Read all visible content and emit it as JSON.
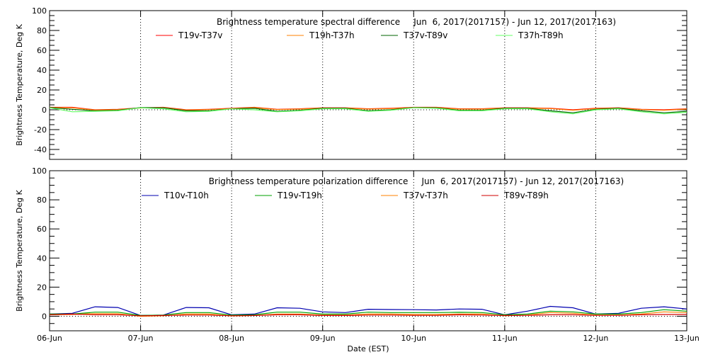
{
  "chart_data": [
    {
      "type": "line",
      "title": "Brightness temperature spectral difference     Jun  6, 2017(2017157) - Jun 12, 2017(2017163)",
      "xlabel": "",
      "ylabel": "Brightness Temperature, Deg K",
      "ylim": [
        -50,
        100
      ],
      "yticks": [
        -40,
        -20,
        0,
        20,
        40,
        60,
        80,
        100
      ],
      "xlim": [
        0,
        7
      ],
      "x_step_days": 0.25,
      "series": [
        {
          "name": "T19v-T37v",
          "color": "#ff0000",
          "values": [
            2.5,
            2.5,
            0,
            0.5,
            2,
            2.5,
            0,
            0.5,
            1.5,
            2.5,
            0.5,
            1,
            2,
            2,
            1,
            1.5,
            2.5,
            2.5,
            1,
            1,
            2,
            2,
            1.5,
            0,
            1.5,
            2,
            0.5,
            0,
            1
          ]
        },
        {
          "name": "T19h-T37h",
          "color": "#ff8000",
          "values": [
            2.2,
            2,
            -0.3,
            0.2,
            1.8,
            2.2,
            -0.3,
            0.2,
            1.2,
            2.2,
            0.2,
            0.7,
            1.7,
            1.7,
            0.7,
            1.2,
            2.2,
            2.2,
            0.7,
            0.7,
            1.7,
            1.7,
            1.2,
            -0.5,
            1.2,
            1.7,
            0.2,
            -0.5,
            0.7
          ]
        },
        {
          "name": "T37v-T89v",
          "color": "#006400",
          "values": [
            2.3,
            0.5,
            -1,
            -0.5,
            2.3,
            2,
            -1,
            -1,
            1,
            1.5,
            -1.5,
            -0.5,
            1.5,
            1.5,
            -1,
            0,
            2.3,
            2,
            -0.5,
            -0.5,
            1.5,
            1.5,
            -1,
            -3,
            0.5,
            1.5,
            -1,
            -3,
            -1.5
          ]
        },
        {
          "name": "T37h-T89h",
          "color": "#66ff66",
          "values": [
            2,
            -2,
            -1.5,
            -1,
            2,
            1,
            -2,
            -1.5,
            1,
            0,
            -2,
            -1,
            1,
            1,
            -1.5,
            -0.5,
            2,
            1.5,
            -1,
            -1,
            1,
            1,
            -2,
            -4,
            0,
            1,
            -2,
            -4,
            -2.5
          ]
        }
      ]
    },
    {
      "type": "line",
      "title": "Brightness temperature polarization difference     Jun  6, 2017(2017157) - Jun 12, 2017(2017163)",
      "xlabel": "Date (EST)",
      "ylabel": "Brightness Temperature, Deg K",
      "ylim": [
        -10,
        100
      ],
      "yticks": [
        0,
        20,
        40,
        60,
        80,
        100
      ],
      "xlim": [
        0,
        7
      ],
      "xticks": [
        "06-Jun",
        "07-Jun",
        "08-Jun",
        "09-Jun",
        "10-Jun",
        "11-Jun",
        "12-Jun",
        "13-Jun"
      ],
      "x_step_days": 0.25,
      "series": [
        {
          "name": "T10v-T10h",
          "color": "#0000b0",
          "values": [
            1.5,
            2,
            6.5,
            6,
            0.5,
            0.8,
            6,
            5.8,
            1,
            1.5,
            5.8,
            5.5,
            3,
            2.5,
            4.8,
            4.6,
            4.5,
            4.3,
            5,
            4.8,
            1,
            3.5,
            6.8,
            5.8,
            1.5,
            2,
            5.5,
            6.5,
            5
          ]
        },
        {
          "name": "T19v-T19h",
          "color": "#00a000",
          "values": [
            1.5,
            1.5,
            2.8,
            2.8,
            0.5,
            0.8,
            2.5,
            2.5,
            0.8,
            1,
            2.8,
            2.8,
            1.5,
            1.5,
            2.8,
            2.5,
            2.5,
            2.5,
            2.7,
            2.5,
            1,
            1.5,
            3.5,
            3,
            1.5,
            1.5,
            2.5,
            4.5,
            3.5
          ]
        },
        {
          "name": "T37v-T37h",
          "color": "#ff8000",
          "values": [
            1,
            1.2,
            1.8,
            1.8,
            0,
            0.3,
            1.5,
            1.5,
            0.2,
            0.5,
            1.5,
            1.5,
            0.8,
            0.8,
            1.5,
            1.5,
            1.2,
            1.2,
            1.5,
            1.5,
            0.3,
            0.8,
            2.5,
            2,
            0.8,
            0.8,
            1.5,
            3,
            2.5
          ]
        },
        {
          "name": "T89v-T89h",
          "color": "#d00000",
          "values": [
            1,
            1.5,
            1,
            1,
            0.3,
            0.5,
            0.8,
            0.8,
            0.3,
            0.5,
            1,
            1,
            0.5,
            0.5,
            0.8,
            0.8,
            0.6,
            0.6,
            1,
            0.8,
            0.5,
            0.6,
            1,
            1,
            0.6,
            0.6,
            1,
            1.2,
            1.2
          ]
        }
      ]
    }
  ]
}
